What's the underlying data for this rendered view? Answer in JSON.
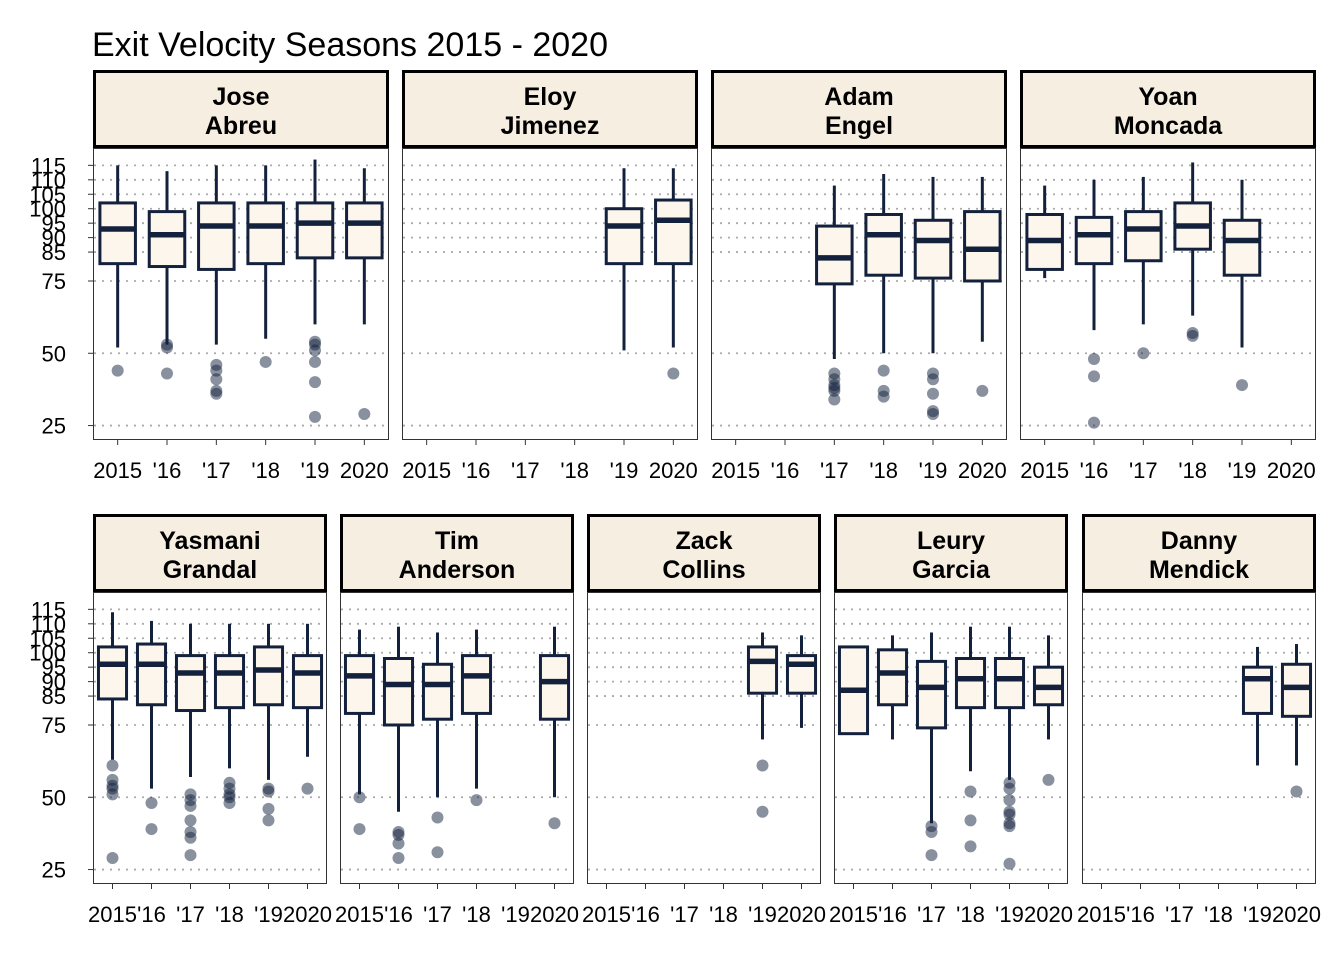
{
  "chart_data": {
    "type": "box",
    "title": "Exit Velocity Seasons 2015 - 2020",
    "xlabel": "",
    "ylabel": "",
    "ylim": [
      20,
      121
    ],
    "y_ticks": [
      25,
      50,
      75,
      85,
      90,
      95,
      100,
      105,
      110,
      115
    ],
    "x_tick_labels": [
      "2015",
      "'16",
      "'17",
      "'18",
      "'19",
      "2020"
    ],
    "grid": "horizontal dotted",
    "colors": {
      "box_fill": "#fdf6ec",
      "box_line": "#14213d",
      "outlier": "#14213d",
      "strip_fill": "#f6efe1",
      "grid": "#aaaaaa"
    },
    "facets": [
      {
        "player": [
          "Jose",
          "Abreu"
        ],
        "boxes": [
          {
            "season": "2015",
            "whisker_low": 52,
            "q1": 81,
            "median": 93,
            "q3": 102,
            "whisker_high": 115,
            "outliers": [
              44
            ]
          },
          {
            "season": "'16",
            "whisker_low": 53,
            "q1": 80,
            "median": 91,
            "q3": 99,
            "whisker_high": 113,
            "outliers": [
              52,
              53,
              43
            ]
          },
          {
            "season": "'17",
            "whisker_low": 53,
            "q1": 79,
            "median": 94,
            "q3": 102,
            "whisker_high": 115,
            "outliers": [
              46,
              44,
              41,
              37,
              36
            ]
          },
          {
            "season": "'18",
            "whisker_low": 55,
            "q1": 81,
            "median": 94,
            "q3": 102,
            "whisker_high": 115,
            "outliers": [
              47
            ]
          },
          {
            "season": "'19",
            "whisker_low": 60,
            "q1": 83,
            "median": 95,
            "q3": 102,
            "whisker_high": 117,
            "outliers": [
              54,
              53,
              51,
              47,
              40,
              28
            ]
          },
          {
            "season": "2020",
            "whisker_low": 60,
            "q1": 83,
            "median": 95,
            "q3": 102,
            "whisker_high": 114,
            "outliers": [
              29
            ]
          }
        ]
      },
      {
        "player": [
          "Eloy",
          "Jimenez"
        ],
        "boxes": [
          {
            "season": "'19",
            "whisker_low": 51,
            "q1": 81,
            "median": 94,
            "q3": 100,
            "whisker_high": 114,
            "outliers": []
          },
          {
            "season": "2020",
            "whisker_low": 52,
            "q1": 81,
            "median": 96,
            "q3": 103,
            "whisker_high": 114,
            "outliers": [
              43
            ]
          }
        ]
      },
      {
        "player": [
          "Adam",
          "Engel"
        ],
        "boxes": [
          {
            "season": "'17",
            "whisker_low": 48,
            "q1": 74,
            "median": 83,
            "q3": 94,
            "whisker_high": 108,
            "outliers": [
              43,
              41,
              39,
              38,
              37,
              34
            ]
          },
          {
            "season": "'18",
            "whisker_low": 50,
            "q1": 77,
            "median": 91,
            "q3": 98,
            "whisker_high": 112,
            "outliers": [
              44,
              37,
              35
            ]
          },
          {
            "season": "'19",
            "whisker_low": 50,
            "q1": 76,
            "median": 89,
            "q3": 96,
            "whisker_high": 111,
            "outliers": [
              43,
              41,
              36,
              30,
              29
            ]
          },
          {
            "season": "2020",
            "whisker_low": 54,
            "q1": 75,
            "median": 86,
            "q3": 99,
            "whisker_high": 111,
            "outliers": [
              37
            ]
          }
        ]
      },
      {
        "player": [
          "Yoan",
          "Moncada"
        ],
        "boxes": [
          {
            "season": "2015",
            "whisker_low": 76,
            "q1": 79,
            "median": 89,
            "q3": 98,
            "whisker_high": 108,
            "outliers": []
          },
          {
            "season": "'16",
            "whisker_low": 58,
            "q1": 81,
            "median": 91,
            "q3": 97,
            "whisker_high": 110,
            "outliers": [
              48,
              42,
              26
            ]
          },
          {
            "season": "'17",
            "whisker_low": 60,
            "q1": 82,
            "median": 93,
            "q3": 99,
            "whisker_high": 111,
            "outliers": [
              50
            ]
          },
          {
            "season": "'18",
            "whisker_low": 63,
            "q1": 86,
            "median": 94,
            "q3": 102,
            "whisker_high": 116,
            "outliers": [
              57,
              56
            ]
          },
          {
            "season": "'19",
            "whisker_low": 52,
            "q1": 77,
            "median": 89,
            "q3": 96,
            "whisker_high": 110,
            "outliers": [
              39
            ]
          }
        ]
      },
      {
        "player": [
          "Yasmani",
          "Grandal"
        ],
        "boxes": [
          {
            "season": "2015",
            "whisker_low": 63,
            "q1": 84,
            "median": 96,
            "q3": 102,
            "whisker_high": 114,
            "outliers": [
              61,
              56,
              54,
              53,
              51,
              29
            ]
          },
          {
            "season": "'16",
            "whisker_low": 53,
            "q1": 82,
            "median": 96,
            "q3": 103,
            "whisker_high": 111,
            "outliers": [
              48,
              39
            ]
          },
          {
            "season": "'17",
            "whisker_low": 57,
            "q1": 80,
            "median": 93,
            "q3": 99,
            "whisker_high": 110,
            "outliers": [
              51,
              49,
              47,
              42,
              38,
              36,
              30
            ]
          },
          {
            "season": "'18",
            "whisker_low": 60,
            "q1": 81,
            "median": 93,
            "q3": 99,
            "whisker_high": 110,
            "outliers": [
              55,
              53,
              51,
              50,
              48
            ]
          },
          {
            "season": "'19",
            "whisker_low": 56,
            "q1": 82,
            "median": 94,
            "q3": 102,
            "whisker_high": 110,
            "outliers": [
              53,
              52,
              46,
              42
            ]
          },
          {
            "season": "2020",
            "whisker_low": 64,
            "q1": 81,
            "median": 93,
            "q3": 99,
            "whisker_high": 110,
            "outliers": [
              53
            ]
          }
        ]
      },
      {
        "player": [
          "Tim",
          "Anderson"
        ],
        "boxes": [
          {
            "season": "2015",
            "whisker_low": 51,
            "q1": 79,
            "median": 92,
            "q3": 99,
            "whisker_high": 108,
            "outliers": [
              50,
              39
            ]
          },
          {
            "season": "'16",
            "whisker_low": 45,
            "q1": 75,
            "median": 89,
            "q3": 98,
            "whisker_high": 109,
            "outliers": [
              38,
              37,
              34,
              29
            ]
          },
          {
            "season": "'17",
            "whisker_low": 50,
            "q1": 77,
            "median": 89,
            "q3": 96,
            "whisker_high": 107,
            "outliers": [
              43,
              31
            ]
          },
          {
            "season": "'18",
            "whisker_low": 53,
            "q1": 79,
            "median": 92,
            "q3": 99,
            "whisker_high": 108,
            "outliers": [
              49
            ]
          },
          {
            "season": "2020",
            "whisker_low": 50,
            "q1": 77,
            "median": 90,
            "q3": 99,
            "whisker_high": 109,
            "outliers": [
              41
            ]
          }
        ]
      },
      {
        "player": [
          "Zack",
          "Collins"
        ],
        "boxes": [
          {
            "season": "'19",
            "whisker_low": 70,
            "q1": 86,
            "median": 97,
            "q3": 102,
            "whisker_high": 107,
            "outliers": [
              61,
              45
            ]
          },
          {
            "season": "2020",
            "whisker_low": 74,
            "q1": 86,
            "median": 96,
            "q3": 99,
            "whisker_high": 106,
            "outliers": []
          }
        ]
      },
      {
        "player": [
          "Leury",
          "Garcia"
        ],
        "boxes": [
          {
            "season": "2015",
            "whisker_low": 72,
            "q1": 72,
            "median": 87,
            "q3": 102,
            "whisker_high": 102,
            "outliers": []
          },
          {
            "season": "'16",
            "whisker_low": 70,
            "q1": 82,
            "median": 93,
            "q3": 101,
            "whisker_high": 106,
            "outliers": []
          },
          {
            "season": "'17",
            "whisker_low": 41,
            "q1": 74,
            "median": 88,
            "q3": 97,
            "whisker_high": 107,
            "outliers": [
              40,
              38,
              30
            ]
          },
          {
            "season": "'18",
            "whisker_low": 59,
            "q1": 81,
            "median": 91,
            "q3": 98,
            "whisker_high": 109,
            "outliers": [
              52,
              42,
              33
            ]
          },
          {
            "season": "'19",
            "whisker_low": 56,
            "q1": 81,
            "median": 91,
            "q3": 98,
            "whisker_high": 109,
            "outliers": [
              55,
              53,
              49,
              45,
              44,
              41,
              40,
              27
            ]
          },
          {
            "season": "2020",
            "whisker_low": 70,
            "q1": 82,
            "median": 88,
            "q3": 95,
            "whisker_high": 106,
            "outliers": [
              56
            ]
          }
        ]
      },
      {
        "player": [
          "Danny",
          "Mendick"
        ],
        "boxes": [
          {
            "season": "'19",
            "whisker_low": 61,
            "q1": 79,
            "median": 91,
            "q3": 95,
            "whisker_high": 102,
            "outliers": []
          },
          {
            "season": "2020",
            "whisker_low": 61,
            "q1": 78,
            "median": 88,
            "q3": 96,
            "whisker_high": 103,
            "outliers": [
              52
            ]
          }
        ]
      }
    ]
  }
}
